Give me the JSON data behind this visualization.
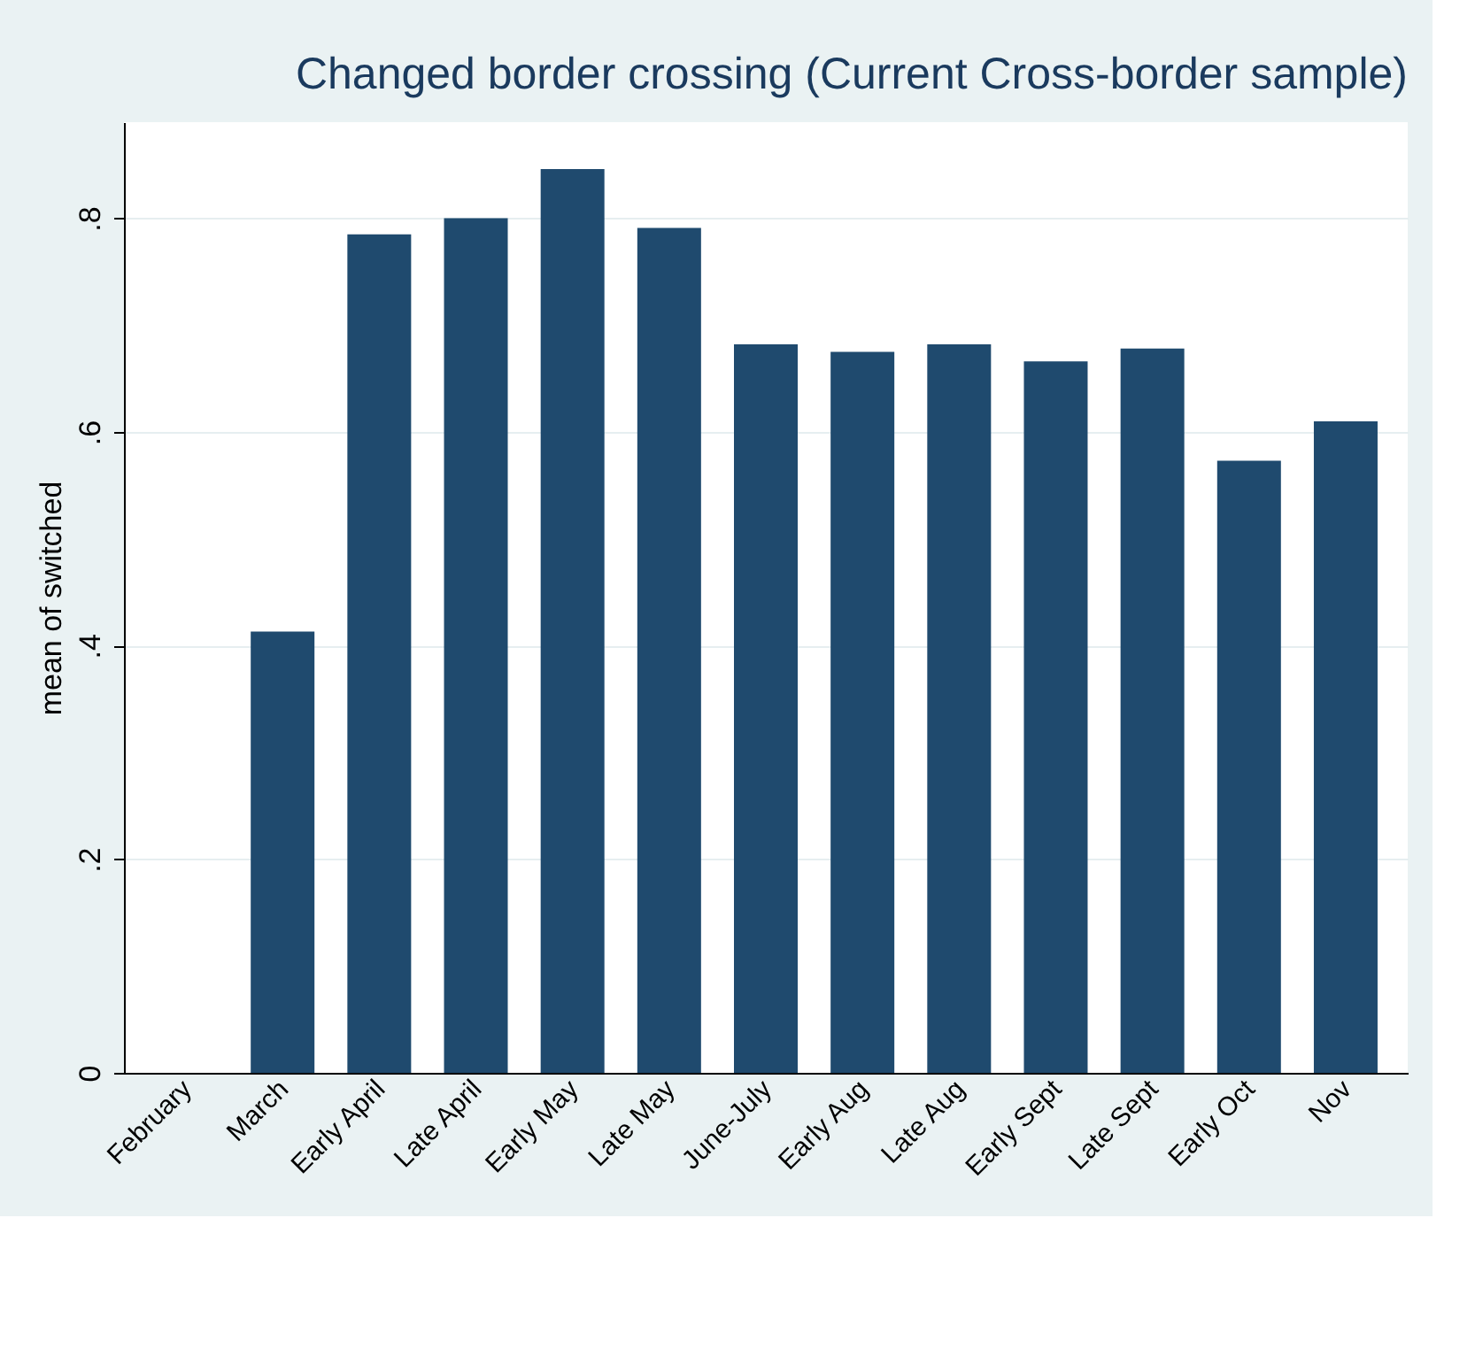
{
  "chart_data": {
    "type": "bar",
    "title": "Changed border crossing (Current Cross-border sample)",
    "ylabel": "mean of switched",
    "categories": [
      "February",
      "March",
      "Early April",
      "Late April",
      "Early May",
      "Late May",
      "June-July",
      "Early Aug",
      "Late Aug",
      "Early Sept",
      "Late Sept",
      "Early Oct",
      "Nov"
    ],
    "values": [
      0,
      0.413,
      0.785,
      0.8,
      0.846,
      0.791,
      0.682,
      0.675,
      0.682,
      0.666,
      0.678,
      0.573,
      0.61
    ],
    "color": "#1f4a6e",
    "ylim": [
      0,
      0.89
    ],
    "yticks": [
      {
        "value": 0,
        "label": "0"
      },
      {
        "value": 0.2,
        "label": ".2"
      },
      {
        "value": 0.4,
        "label": ".4"
      },
      {
        "value": 0.6,
        "label": ".6"
      },
      {
        "value": 0.8,
        "label": ".8"
      }
    ],
    "grid": "y"
  }
}
